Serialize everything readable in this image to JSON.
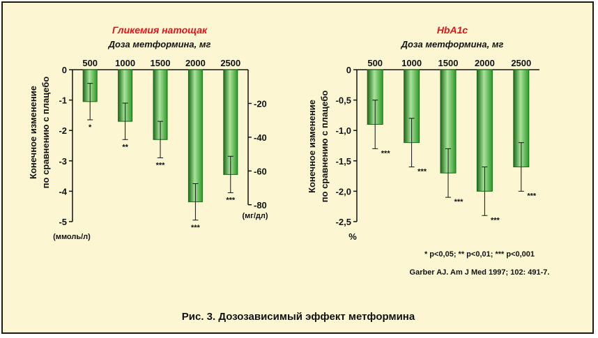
{
  "caption": "Рис. 3. Дозозависимый эффект метформина",
  "footnote": "* p<0,05; ** p<0,01; *** p<0,001",
  "reference": "Garber AJ. Am J Med 1997; 102: 491-7.",
  "colors": {
    "bar": "#2f9a2a",
    "bar_light": "#a9e39b",
    "bar_dark": "#1b6a18",
    "title": "#e0141e",
    "background": "#fcf7d2"
  },
  "chart_data": [
    {
      "type": "bar",
      "title": "Гликемия натощак",
      "subtitle": "Доза метформина, мг",
      "ylabel": "Конечное изменение по сравнению с плацебо",
      "categories": [
        "500",
        "1000",
        "1500",
        "2000",
        "2500"
      ],
      "values": [
        -1.05,
        -1.7,
        -2.3,
        -4.35,
        -3.45
      ],
      "errors": [
        0.6,
        0.6,
        0.6,
        0.6,
        0.6
      ],
      "significance": [
        "*",
        "**",
        "***",
        "***",
        "***"
      ],
      "ylim": [
        -5,
        0
      ],
      "yticks": [
        0,
        -1,
        -2,
        -3,
        -4,
        -5
      ],
      "ytick_labels": [
        "0",
        "-1",
        "-2",
        "-3",
        "-4",
        "-5"
      ],
      "yunit": "(ммоль/л)",
      "y2ticks": [
        -20,
        -40,
        -60,
        -80
      ],
      "y2tick_labels": [
        "-20",
        "-40",
        "-60",
        "-80"
      ],
      "y2unit": "(мг/дл)",
      "y2_per_y": 18
    },
    {
      "type": "bar",
      "title": "HbA1c",
      "subtitle": "Доза метформина, мг",
      "ylabel": "Конечное изменение по сравнению с плацебо",
      "categories": [
        "500",
        "1000",
        "1500",
        "2000",
        "2500"
      ],
      "values": [
        -0.9,
        -1.2,
        -1.7,
        -2.0,
        -1.6
      ],
      "errors": [
        0.4,
        0.4,
        0.4,
        0.4,
        0.4
      ],
      "significance": [
        "***",
        "***",
        "***",
        "***",
        "***"
      ],
      "ylim": [
        -2.5,
        0
      ],
      "yticks": [
        0,
        -0.5,
        -1.0,
        -1.5,
        -2.0,
        -2.5
      ],
      "ytick_labels": [
        "0",
        "-0,5",
        "-1,0",
        "-1,5",
        "-2,0",
        "-2,5"
      ],
      "yunit": "%"
    }
  ]
}
